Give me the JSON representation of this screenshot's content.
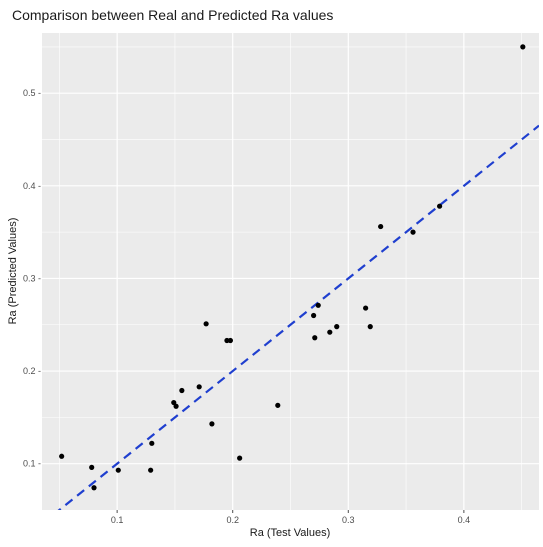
{
  "chart_data": {
    "type": "scatter",
    "title": "Comparison between Real and Predicted Ra values",
    "xlabel": "Ra (Test Values)",
    "ylabel": "Ra (Predicted Values)",
    "xlim": [
      0.035,
      0.465
    ],
    "ylim": [
      0.05,
      0.565
    ],
    "xticks": [
      0.1,
      0.2,
      0.3,
      0.4
    ],
    "xtick_labels": [
      "0.1",
      "0.2",
      "0.3",
      "0.4"
    ],
    "yticks": [
      0.1,
      0.2,
      0.3,
      0.4,
      0.5
    ],
    "ytick_labels": [
      "0.1 -",
      "0.2 -",
      "0.3 -",
      "0.4 -",
      "0.5 -"
    ],
    "grid": true,
    "panel_color": "#ebebeb",
    "grid_color": "#ffffff",
    "point_color": "#000000",
    "reference_line": {
      "style": "dashed",
      "color": "#1f3fcf",
      "intercept": 0.0,
      "slope": 1.0
    },
    "points": [
      {
        "x": 0.052,
        "y": 0.108
      },
      {
        "x": 0.078,
        "y": 0.096
      },
      {
        "x": 0.08,
        "y": 0.074
      },
      {
        "x": 0.101,
        "y": 0.093
      },
      {
        "x": 0.129,
        "y": 0.093
      },
      {
        "x": 0.13,
        "y": 0.122
      },
      {
        "x": 0.149,
        "y": 0.166
      },
      {
        "x": 0.151,
        "y": 0.162
      },
      {
        "x": 0.156,
        "y": 0.179
      },
      {
        "x": 0.171,
        "y": 0.183
      },
      {
        "x": 0.177,
        "y": 0.251
      },
      {
        "x": 0.182,
        "y": 0.143
      },
      {
        "x": 0.195,
        "y": 0.233
      },
      {
        "x": 0.198,
        "y": 0.233
      },
      {
        "x": 0.206,
        "y": 0.106
      },
      {
        "x": 0.239,
        "y": 0.163
      },
      {
        "x": 0.27,
        "y": 0.26
      },
      {
        "x": 0.271,
        "y": 0.236
      },
      {
        "x": 0.274,
        "y": 0.271
      },
      {
        "x": 0.284,
        "y": 0.242
      },
      {
        "x": 0.29,
        "y": 0.248
      },
      {
        "x": 0.315,
        "y": 0.268
      },
      {
        "x": 0.319,
        "y": 0.248
      },
      {
        "x": 0.328,
        "y": 0.356
      },
      {
        "x": 0.356,
        "y": 0.35
      },
      {
        "x": 0.379,
        "y": 0.378
      },
      {
        "x": 0.451,
        "y": 0.55
      }
    ]
  }
}
